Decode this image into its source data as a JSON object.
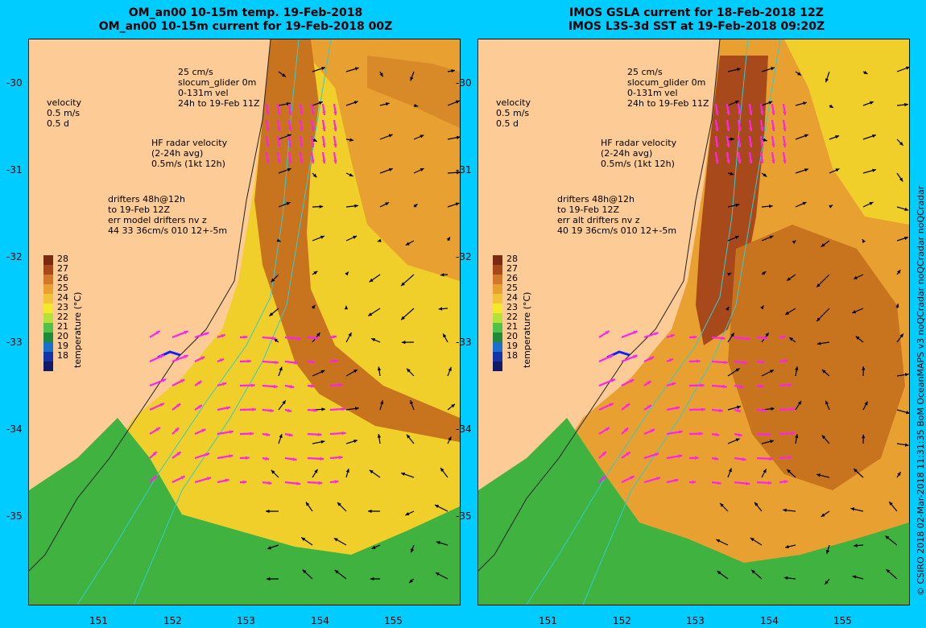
{
  "left_panel": {
    "title_line1": "OM_an00 10-15m temp. 19-Feb-2018",
    "title_line2": "OM_an00 10-15m current for 19-Feb-2018 00Z",
    "drifters": [
      "drifters 48h@12h",
      "to 19-Feb 12Z",
      "err model drifters nv z",
      "44 33 36cm/s 010 12+-5m"
    ]
  },
  "right_panel": {
    "title_line1": "IMOS GSLA current for 18-Feb-2018 12Z",
    "title_line2": "IMOS L3S-3d SST at 19-Feb-2018 09:20Z",
    "drifters": [
      "drifters 48h@12h",
      "to 19-Feb 12Z",
      "err alt drifters nv z",
      "40 19 36cm/s 010 12+-5m"
    ]
  },
  "legend": {
    "glider": [
      "25 cm/s",
      "slocum_glider 0m",
      "0-131m vel",
      "24h to 19-Feb 11Z"
    ],
    "velocity": [
      "velocity",
      "0.5 m/s",
      "0.5 d"
    ],
    "hf_radar": [
      "HF radar velocity",
      "(2-24h avg)",
      "0.5m/s (1kt 12h)"
    ]
  },
  "colorbar": {
    "unit": "temperature (°C)",
    "ticks": [
      "28",
      "27",
      "26",
      "25",
      "24",
      "23",
      "22",
      "21",
      "20",
      "19",
      "18"
    ],
    "colors": [
      "#7a2a10",
      "#a8491c",
      "#d2782a",
      "#e8a030",
      "#f2c238",
      "#f5e82a",
      "#b5e23a",
      "#4fc24a",
      "#1f8a3a",
      "#1a6fcc",
      "#1234a8",
      "#111a66"
    ]
  },
  "axes": {
    "lat_ticks": [
      "-30",
      "-31",
      "-32",
      "-33",
      "-34",
      "-35"
    ],
    "lon_ticks": [
      "151",
      "152",
      "153",
      "154",
      "155"
    ]
  },
  "credit": "© CSIRO 2018   02-Mar-2018 11:31:35 BoM OceanMAPS v3 noQCradar noQCradar noQCradar",
  "colors": {
    "land": "#fccb96",
    "background": "#00ccff",
    "warm_current": "#c8741f",
    "shelf_green": "#3fb23f",
    "contour": "#33cccc",
    "radar_vector": "#ff22ee",
    "glider": "#1020ff"
  }
}
